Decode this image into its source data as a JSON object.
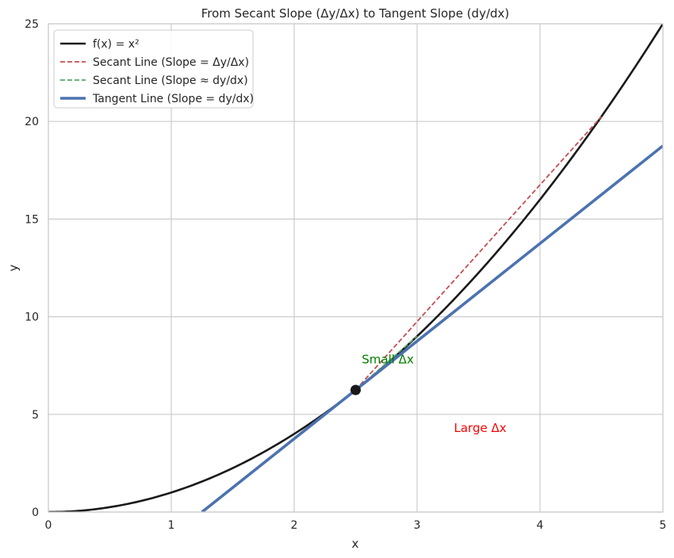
{
  "chart_data": {
    "type": "line",
    "title": "From Secant Slope (Δy/Δx) to Tangent Slope (dy/dx)",
    "xlabel": "x",
    "ylabel": "y",
    "xlim": [
      0,
      5
    ],
    "ylim": [
      0,
      25
    ],
    "xticks": [
      "0",
      "1",
      "2",
      "3",
      "4",
      "5"
    ],
    "yticks": [
      "0",
      "5",
      "10",
      "15",
      "20",
      "25"
    ],
    "grid": true,
    "legend_position": "top-left",
    "point": {
      "x": 2.5,
      "y": 6.25
    },
    "series": [
      {
        "name": "f(x) = x²",
        "kind": "curve",
        "function": "x^2",
        "domain": [
          0,
          5
        ],
        "color": "#1a1a1a",
        "style": "solid"
      },
      {
        "name": "Secant Line (Slope = Δy/Δx)",
        "kind": "segment",
        "points": [
          [
            2.5,
            6.25
          ],
          [
            4.5,
            20.25
          ]
        ],
        "color": "#c44e52",
        "style": "dashed"
      },
      {
        "name": "Secant Line (Slope ≈ dy/dx)",
        "kind": "segment",
        "points": [
          [
            2.5,
            6.25
          ],
          [
            3.0,
            9.0
          ]
        ],
        "color": "#55a868",
        "style": "dashed"
      },
      {
        "name": "Tangent Line (Slope = dy/dx)",
        "kind": "segment",
        "points": [
          [
            1.25,
            0
          ],
          [
            5,
            18.75
          ]
        ],
        "color": "#4c72b0",
        "style": "solid"
      }
    ],
    "annotations": [
      {
        "text": "Small Δx",
        "x": 2.55,
        "y": 7.6,
        "color": "#008000"
      },
      {
        "text": "Large Δx",
        "x": 3.3,
        "y": 4.1,
        "color": "#ff0000"
      }
    ]
  }
}
